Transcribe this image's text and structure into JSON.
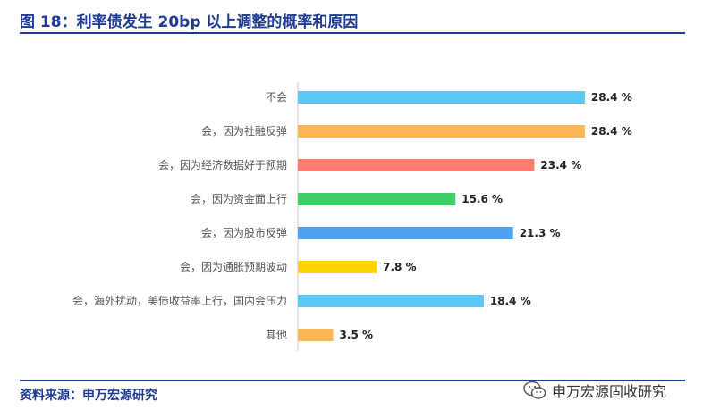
{
  "header": {
    "title": "图 18：利率债发生 20bp 以上调整的概率和原因"
  },
  "footer": {
    "source": "资料来源：申万宏源研究",
    "watermark": "申万宏源固收研究"
  },
  "chart_data": {
    "type": "bar",
    "orientation": "horizontal",
    "title": "",
    "xlabel": "",
    "ylabel": "",
    "xlim": [
      0,
      30
    ],
    "grid": false,
    "legend": "none",
    "categories": [
      "不会",
      "会，因为社融反弹",
      "会，因为经济数据好于预期",
      "会，因为资金面上行",
      "会，因为股市反弹",
      "会，因为通胀预期波动",
      "会，海外扰动，美债收益率上行，国内会压力",
      "其他"
    ],
    "values": [
      28.4,
      28.4,
      23.4,
      15.6,
      21.3,
      7.8,
      18.4,
      3.5
    ],
    "value_labels": [
      "28.4 %",
      "28.4 %",
      "23.4 %",
      "15.6 %",
      "21.3 %",
      "7.8 %",
      "18.4 %",
      "3.5 %"
    ],
    "colors": [
      "#5bc8f5",
      "#fbb755",
      "#ff7b6b",
      "#3ed068",
      "#4ea2f4",
      "#ffd400",
      "#5bc8f5",
      "#fbb755"
    ]
  }
}
